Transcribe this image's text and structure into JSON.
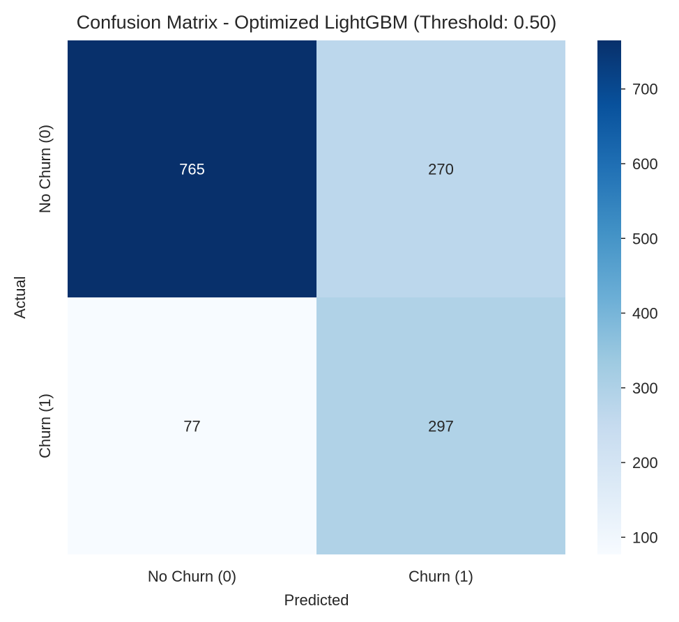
{
  "chart_data": {
    "type": "heatmap",
    "title": "Confusion Matrix - Optimized LightGBM (Threshold: 0.50)",
    "xlabel": "Predicted",
    "ylabel": "Actual",
    "x_categories": [
      "No Churn (0)",
      "Churn (1)"
    ],
    "y_categories": [
      "No Churn (0)",
      "Churn (1)"
    ],
    "values": [
      [
        765,
        270
      ],
      [
        77,
        297
      ]
    ],
    "colormap": "Blues",
    "colorbar": {
      "min": 77,
      "max": 765,
      "ticks": [
        "100",
        "200",
        "300",
        "400",
        "500",
        "600",
        "700"
      ]
    },
    "annotation_colors": {
      "dark_cell": "#ffffff",
      "light_cell": "#262626"
    }
  }
}
